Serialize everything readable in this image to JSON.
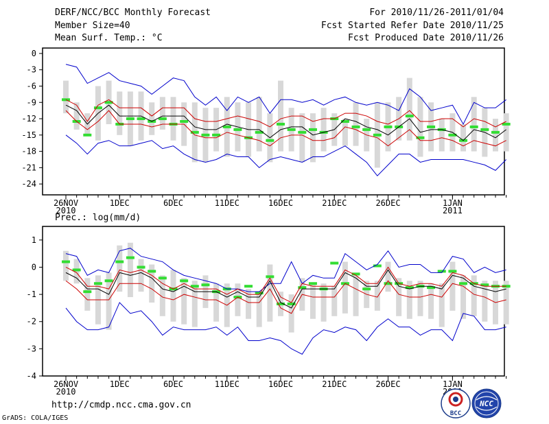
{
  "header": {
    "left_title": "DERF/NCC/BCC Monthly Forecast",
    "left_member": "Member Size=40",
    "right_for": "For 2010/11/26-2011/01/04",
    "right_started": "Fcst Started Refer Date 2010/11/25",
    "right_produced": "Fcst Produced Date 2010/11/26"
  },
  "footer": {
    "url": "http://cmdp.ncc.cma.gov.cn",
    "grads": "GrADS: COLA/IGES",
    "logo_left": "BCC",
    "logo_right": "NCC"
  },
  "colors": {
    "envelope": "#0000cc",
    "spread": "#cc0000",
    "mean": "#000000",
    "box": "#d8d8d8",
    "marker": "#33dd33"
  },
  "chart_data": [
    {
      "type": "line",
      "title": "Mean Surf. Temp.: °C",
      "ylim": [
        -26,
        1
      ],
      "yticks": [
        0,
        -3,
        -6,
        -9,
        -12,
        -15,
        -18,
        -21,
        -24
      ],
      "xtick_labels": [
        {
          "day": 0,
          "label": "26NOV",
          "label2": "2010"
        },
        {
          "day": 5,
          "label": "1DEC"
        },
        {
          "day": 10,
          "label": "6DEC"
        },
        {
          "day": 15,
          "label": "11DEC"
        },
        {
          "day": 20,
          "label": "16DEC"
        },
        {
          "day": 25,
          "label": "21DEC"
        },
        {
          "day": 30,
          "label": "26DEC"
        },
        {
          "day": 36,
          "label": "1JAN",
          "label2": "2011"
        }
      ],
      "series": [
        {
          "name": "max",
          "values": [
            -2,
            -2.5,
            -5.5,
            -4.5,
            -3.5,
            -5,
            -5.5,
            -6,
            -7.5,
            -6,
            -4.5,
            -5,
            -8,
            -9.5,
            -8,
            -10.5,
            -8,
            -9,
            -8,
            -11,
            -8.5,
            -8.5,
            -9,
            -8.5,
            -9.5,
            -8.5,
            -8,
            -9,
            -9.5,
            -9,
            -9.5,
            -10.5,
            -6.5,
            -8,
            -10.5,
            -10,
            -9.5,
            -13,
            -9,
            -10,
            -10,
            -8.5
          ]
        },
        {
          "name": "upper",
          "values": [
            -8.5,
            -9.5,
            -12.5,
            -9.5,
            -8.5,
            -10,
            -10,
            -10,
            -11.5,
            -10,
            -10,
            -10,
            -12,
            -12.5,
            -12.5,
            -12,
            -11.5,
            -12,
            -12.5,
            -13.5,
            -12,
            -11.5,
            -11.5,
            -12.5,
            -12,
            -12,
            -11,
            -11,
            -11.5,
            -12.5,
            -13,
            -12,
            -10.5,
            -12.5,
            -12.5,
            -12,
            -12,
            -13.5,
            -12,
            -12.5,
            -13.5,
            -12.5
          ]
        },
        {
          "name": "mean",
          "values": [
            -9.5,
            -10.5,
            -13,
            -11,
            -9.5,
            -11.5,
            -11.5,
            -11.5,
            -12.5,
            -11.5,
            -11.5,
            -11.5,
            -13.5,
            -14,
            -14,
            -13,
            -13.5,
            -14,
            -14,
            -15.5,
            -14,
            -13.5,
            -13.5,
            -15,
            -14.5,
            -14,
            -12,
            -12.5,
            -13.5,
            -14,
            -15,
            -13.5,
            -12,
            -14.5,
            -14,
            -14,
            -14.5,
            -16,
            -14,
            -14.5,
            -15.5,
            -14
          ]
        },
        {
          "name": "lower",
          "values": [
            -10.5,
            -12.5,
            -14,
            -12.5,
            -10.5,
            -13,
            -13,
            -13,
            -13.5,
            -13,
            -13,
            -13,
            -15,
            -15.5,
            -15.5,
            -14.5,
            -15,
            -15.5,
            -16,
            -17,
            -15.5,
            -15,
            -15,
            -16,
            -16,
            -15.5,
            -13.5,
            -14,
            -15,
            -15.5,
            -17,
            -15.5,
            -14,
            -16,
            -16,
            -15.5,
            -16,
            -17,
            -16,
            -16.5,
            -17,
            -16
          ]
        },
        {
          "name": "min",
          "values": [
            -15,
            -16.5,
            -18.5,
            -16.5,
            -16,
            -17,
            -17,
            -16.5,
            -16,
            -17.5,
            -17,
            -18.5,
            -19.5,
            -20,
            -19.5,
            -18.5,
            -19,
            -19,
            -21,
            -19.5,
            -19,
            -19.5,
            -20,
            -19,
            -19,
            -18,
            -17,
            -18.5,
            -20,
            -22.5,
            -20.5,
            -18.5,
            -18.5,
            -20,
            -19.5,
            -19.5,
            -19.5,
            -19.5,
            -20,
            -20.5,
            -21.5,
            -19.5
          ]
        }
      ],
      "boxes": [
        [
          -5,
          -11
        ],
        [
          -9,
          -14
        ],
        [
          -11,
          -15
        ],
        [
          -6,
          -16
        ],
        [
          -5,
          -13
        ],
        [
          -7,
          -15
        ],
        [
          -7,
          -17
        ],
        [
          -7,
          -16
        ],
        [
          -9,
          -15
        ],
        [
          -8,
          -14
        ],
        [
          -8,
          -16
        ],
        [
          -9,
          -17
        ],
        [
          -9,
          -20
        ],
        [
          -10,
          -20
        ],
        [
          -10,
          -18
        ],
        [
          -8,
          -19
        ],
        [
          -9,
          -18
        ],
        [
          -9,
          -19
        ],
        [
          -8,
          -18
        ],
        [
          -11,
          -20
        ],
        [
          -5,
          -18
        ],
        [
          -10,
          -18
        ],
        [
          -11,
          -20
        ],
        [
          -11,
          -20
        ],
        [
          -10,
          -18
        ],
        [
          -11,
          -17
        ],
        [
          -12,
          -17
        ],
        [
          -9,
          -17
        ],
        [
          -12,
          -18
        ],
        [
          -9,
          -21
        ],
        [
          -9,
          -18
        ],
        [
          -8,
          -16
        ],
        [
          -4.5,
          -16
        ],
        [
          -8,
          -19
        ],
        [
          -9,
          -18
        ],
        [
          -12,
          -18
        ],
        [
          -11,
          -18
        ],
        [
          -13,
          -18
        ],
        [
          -8,
          -18
        ],
        [
          -10,
          -19
        ],
        [
          -12,
          -18
        ],
        [
          -11,
          -18
        ]
      ],
      "markers": [
        -8.5,
        -12.5,
        -15,
        -10,
        -9,
        -13,
        -12,
        -12,
        -12.5,
        -12,
        -13,
        -12.5,
        -14.5,
        -15,
        -15,
        -13.5,
        -14,
        -15.5,
        -14.5,
        -16,
        -13,
        -14,
        -14.5,
        -14,
        -14.5,
        -12,
        -12.5,
        -13.5,
        -14,
        -15,
        -13.5,
        -13.5,
        -11.5,
        -15.5,
        -13.5,
        -14,
        -15,
        -16,
        -13.5,
        -14,
        -14.5,
        -13
      ]
    },
    {
      "type": "line",
      "title": "Prec.: log(mm/d)",
      "ylim": [
        -4,
        1.5
      ],
      "yticks": [
        1,
        0,
        -1,
        -2,
        -3,
        -4
      ],
      "xtick_labels": [
        {
          "day": 0,
          "label": "26NOV",
          "label2": "2010"
        },
        {
          "day": 5,
          "label": "1DEC"
        },
        {
          "day": 10,
          "label": "6DEC"
        },
        {
          "day": 15,
          "label": "11DEC"
        },
        {
          "day": 20,
          "label": "16DEC"
        },
        {
          "day": 25,
          "label": "21DEC"
        },
        {
          "day": 30,
          "label": "26DEC"
        },
        {
          "day": 36,
          "label": "1JAN",
          "label2": "2011"
        }
      ],
      "series": [
        {
          "name": "max",
          "values": [
            0.5,
            0.4,
            -0.3,
            -0.1,
            -0.2,
            0.6,
            0.7,
            0.4,
            0.3,
            0.2,
            -0.1,
            -0.3,
            -0.4,
            -0.5,
            -0.6,
            -0.8,
            -0.8,
            -0.9,
            -0.9,
            -0.6,
            -0.6,
            0.2,
            -0.6,
            -0.3,
            -0.4,
            -0.4,
            0.5,
            0.2,
            -0.1,
            0.1,
            0.6,
            0.0,
            0.1,
            0.1,
            -0.2,
            -0.2,
            0.4,
            0.3,
            -0.2,
            0.0,
            -0.2,
            -0.1
          ]
        },
        {
          "name": "upper",
          "values": [
            0.0,
            -0.2,
            -0.7,
            -0.7,
            -0.8,
            -0.1,
            -0.2,
            -0.1,
            -0.3,
            -0.6,
            -0.8,
            -0.6,
            -0.8,
            -0.8,
            -0.8,
            -1.0,
            -0.8,
            -1.0,
            -1.0,
            -0.4,
            -1.1,
            -1.3,
            -0.6,
            -0.7,
            -0.7,
            -0.7,
            -0.1,
            -0.3,
            -0.6,
            -0.6,
            0.0,
            -0.6,
            -0.7,
            -0.6,
            -0.6,
            -0.7,
            -0.2,
            -0.3,
            -0.6,
            -0.7,
            -0.7,
            -0.7
          ]
        },
        {
          "name": "mean",
          "values": [
            -0.2,
            -0.4,
            -0.8,
            -0.8,
            -1.0,
            -0.2,
            -0.3,
            -0.2,
            -0.4,
            -0.8,
            -0.9,
            -0.7,
            -0.9,
            -0.9,
            -0.9,
            -1.1,
            -0.9,
            -1.1,
            -1.1,
            -0.5,
            -1.3,
            -1.5,
            -0.8,
            -0.8,
            -0.8,
            -0.8,
            -0.2,
            -0.4,
            -0.7,
            -0.7,
            -0.1,
            -0.7,
            -0.8,
            -0.7,
            -0.7,
            -0.8,
            -0.3,
            -0.4,
            -0.7,
            -0.8,
            -0.9,
            -0.8
          ]
        },
        {
          "name": "lower",
          "values": [
            -0.5,
            -0.8,
            -1.2,
            -1.2,
            -1.2,
            -0.6,
            -0.6,
            -0.6,
            -0.8,
            -1.1,
            -1.2,
            -1.0,
            -1.1,
            -1.2,
            -1.2,
            -1.4,
            -1.1,
            -1.3,
            -1.3,
            -0.8,
            -1.5,
            -1.7,
            -1.0,
            -1.1,
            -1.1,
            -1.1,
            -0.6,
            -0.8,
            -1.0,
            -1.1,
            -0.5,
            -1.0,
            -1.1,
            -1.1,
            -1.0,
            -1.1,
            -0.6,
            -0.7,
            -1.0,
            -1.1,
            -1.3,
            -1.2
          ]
        },
        {
          "name": "min",
          "values": [
            -1.5,
            -2.0,
            -2.3,
            -2.3,
            -2.2,
            -1.3,
            -1.7,
            -1.6,
            -2.0,
            -2.5,
            -2.2,
            -2.3,
            -2.3,
            -2.3,
            -2.2,
            -2.5,
            -2.2,
            -2.7,
            -2.7,
            -2.6,
            -2.7,
            -3.0,
            -3.2,
            -2.6,
            -2.3,
            -2.4,
            -2.2,
            -2.3,
            -2.7,
            -2.2,
            -1.9,
            -2.2,
            -2.2,
            -2.5,
            -2.3,
            -2.3,
            -2.7,
            -1.7,
            -1.8,
            -2.3,
            -2.3,
            -2.2
          ]
        }
      ],
      "boxes": [
        [
          0.6,
          -0.5
        ],
        [
          0.3,
          -0.6
        ],
        [
          -0.4,
          -1.6
        ],
        [
          -0.3,
          -2.1
        ],
        [
          -0.2,
          -2.3
        ],
        [
          0.8,
          -0.9
        ],
        [
          0.9,
          -1.1
        ],
        [
          0.3,
          -0.9
        ],
        [
          0.1,
          -1.3
        ],
        [
          -0.3,
          -1.8
        ],
        [
          -0.1,
          -2.0
        ],
        [
          -0.4,
          -2.1
        ],
        [
          -0.5,
          -2.2
        ],
        [
          -0.3,
          -1.5
        ],
        [
          -0.6,
          -2.0
        ],
        [
          -0.6,
          -2.2
        ],
        [
          -0.6,
          -1.8
        ],
        [
          -0.8,
          -1.9
        ],
        [
          -0.9,
          -2.2
        ],
        [
          0.1,
          -2.0
        ],
        [
          -0.9,
          -1.8
        ],
        [
          -1.0,
          -2.4
        ],
        [
          -0.4,
          -1.6
        ],
        [
          -0.6,
          -1.9
        ],
        [
          -0.6,
          -2.0
        ],
        [
          -0.7,
          -1.8
        ],
        [
          0.2,
          -1.7
        ],
        [
          -0.3,
          -1.8
        ],
        [
          -0.5,
          -1.5
        ],
        [
          -0.5,
          -1.6
        ],
        [
          0.2,
          -0.9
        ],
        [
          -0.4,
          -1.8
        ],
        [
          -0.5,
          -1.9
        ],
        [
          -0.5,
          -1.8
        ],
        [
          -0.6,
          -1.9
        ],
        [
          -0.6,
          -2.2
        ],
        [
          0.2,
          -1.6
        ],
        [
          -0.3,
          -1.9
        ],
        [
          -0.3,
          -1.8
        ],
        [
          -0.5,
          -2.0
        ],
        [
          -0.5,
          -2.1
        ],
        [
          -0.5,
          -2.1
        ]
      ],
      "markers": [
        0.2,
        -0.1,
        -0.9,
        -0.6,
        -0.5,
        0.2,
        0.35,
        0.0,
        -0.15,
        -0.4,
        -0.8,
        -0.5,
        -0.7,
        -0.65,
        -0.9,
        -0.8,
        -1.1,
        -0.7,
        -0.95,
        -0.35,
        -1.35,
        -1.35,
        -0.75,
        -0.6,
        -0.8,
        0.15,
        -0.6,
        -0.25,
        -0.8,
        0.05,
        -0.6,
        -0.6,
        -0.75,
        -0.7,
        -0.75,
        -0.15,
        -0.15,
        -0.6,
        -0.6,
        -0.65,
        -0.7,
        -0.7
      ]
    }
  ]
}
